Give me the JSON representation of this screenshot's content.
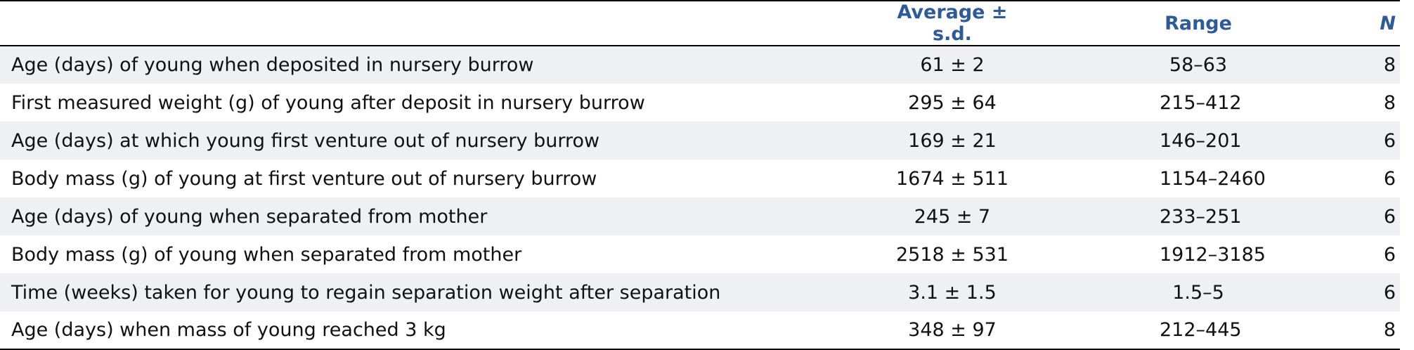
{
  "table": {
    "headers": {
      "label": "",
      "average": "Average ± s.d.",
      "range": "Range",
      "n": "N"
    },
    "rows": [
      {
        "label": "Age (days) of young when deposited in nursery burrow",
        "average": "61 ± 2",
        "range": "58–63",
        "n": "8"
      },
      {
        "label": "First measured weight (g) of young after deposit in nursery burrow",
        "average": "295 ± 64",
        "range": "215–412",
        "n": "8"
      },
      {
        "label": "Age (days) at which young first venture out of nursery burrow",
        "average": "169 ± 21",
        "range": "146–201",
        "n": "6"
      },
      {
        "label": "Body mass (g) of young at first venture out of nursery burrow",
        "average": "1674 ± 511",
        "range": "1154–2460",
        "n": "6"
      },
      {
        "label": "Age (days) of young when separated from mother",
        "average": "245 ± 7",
        "range": "233–251",
        "n": "6"
      },
      {
        "label": "Body mass (g) of young when separated from mother",
        "average": "2518 ± 531",
        "range": "1912–3185",
        "n": "6"
      },
      {
        "label": "Time (weeks) taken for young to regain separation weight after separation",
        "average": "3.1 ± 1.5",
        "range": "1.5–5",
        "n": "6"
      },
      {
        "label": "Age (days) when mass of young reached 3 kg",
        "average": "348 ± 97",
        "range": "212–445",
        "n": "8"
      }
    ]
  },
  "colors": {
    "header_text": "#2e5a97",
    "shaded_row": "#eef0f4",
    "rule": "#000000"
  }
}
